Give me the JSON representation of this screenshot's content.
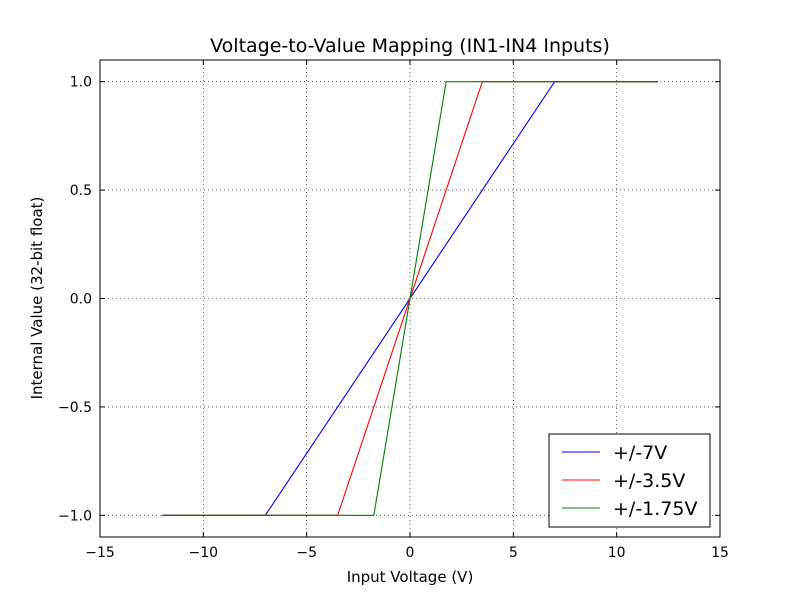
{
  "chart_data": {
    "type": "line",
    "title": "Voltage-to-Value Mapping (IN1-IN4 Inputs)",
    "xlabel": "Input Voltage (V)",
    "ylabel": "Internal Value (32-bit float)",
    "xlim": [
      -15,
      15
    ],
    "ylim": [
      -1.1,
      1.1
    ],
    "xticks": [
      -15,
      -10,
      -5,
      0,
      5,
      10,
      15
    ],
    "xtick_labels": [
      "−15",
      "−10",
      "−5",
      "0",
      "5",
      "10",
      "15"
    ],
    "yticks": [
      -1.0,
      -0.5,
      0.0,
      0.5,
      1.0
    ],
    "ytick_labels": [
      "−1.0",
      "−0.5",
      "0.0",
      "0.5",
      "1.0"
    ],
    "grid": true,
    "legend_position": "bottom-right",
    "series": [
      {
        "name": "+/-7V",
        "color": "#0000ff",
        "x": [
          -12,
          -7,
          7,
          12
        ],
        "y": [
          -1,
          -1,
          1,
          1
        ]
      },
      {
        "name": "+/-3.5V",
        "color": "#ff0000",
        "x": [
          -12,
          -3.5,
          3.5,
          12
        ],
        "y": [
          -1,
          -1,
          1,
          1
        ]
      },
      {
        "name": "+/-1.75V",
        "color": "#008000",
        "x": [
          -12,
          -1.75,
          1.75,
          12
        ],
        "y": [
          -1,
          -1,
          1,
          1
        ]
      }
    ]
  }
}
